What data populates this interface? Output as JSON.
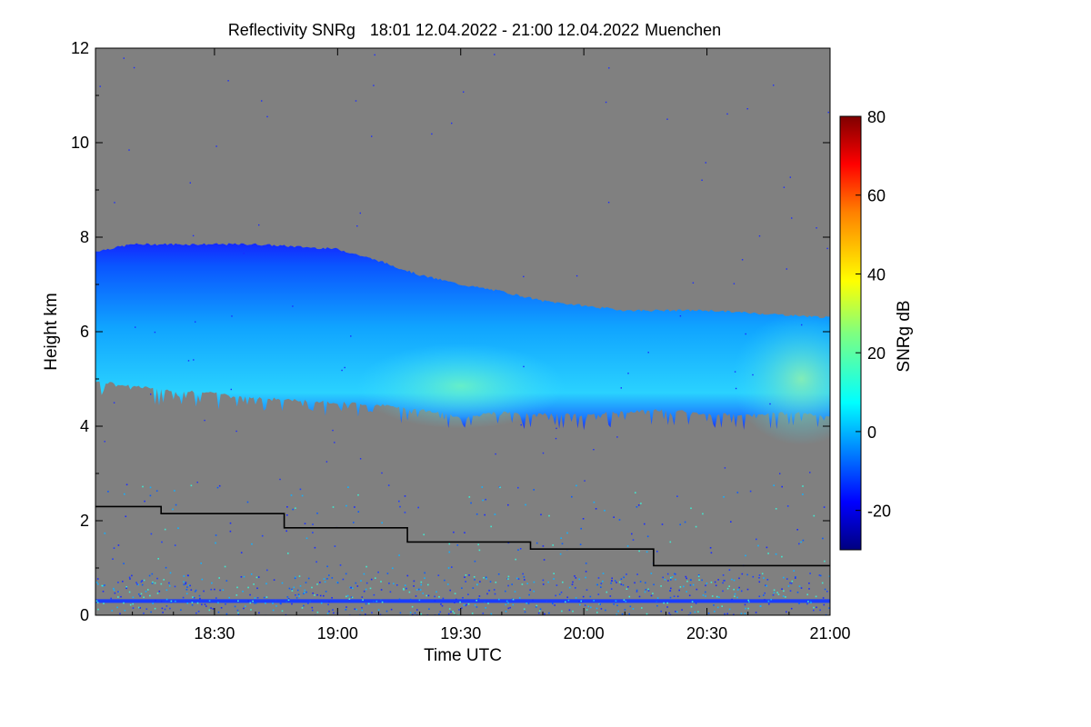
{
  "chart_data": {
    "type": "heatmap",
    "title": {
      "product": "Reflectivity SNRg",
      "period": "18:01 12.04.2022 - 21:00 12.04.2022",
      "site": "Muenchen"
    },
    "xlabel": "Time UTC",
    "ylabel": "Height km",
    "xlim_minutes": [
      1081,
      1260
    ],
    "ylim_km": [
      0,
      12
    ],
    "x_ticks": [
      {
        "label": "18:30",
        "minutes": 1110
      },
      {
        "label": "19:00",
        "minutes": 1140
      },
      {
        "label": "19:30",
        "minutes": 1170
      },
      {
        "label": "20:00",
        "minutes": 1200
      },
      {
        "label": "20:30",
        "minutes": 1230
      },
      {
        "label": "21:00",
        "minutes": 1260
      }
    ],
    "y_ticks": [
      0,
      2,
      4,
      6,
      8,
      10,
      12
    ],
    "colorbar": {
      "label": "SNRg dB",
      "range": [
        -30,
        80
      ],
      "ticks": [
        -20,
        0,
        20,
        40,
        60,
        80
      ],
      "colormap": "jet"
    },
    "background_color": "#808080",
    "cloud_layer": {
      "description": "SNRg echo of cloud layer",
      "times_minutes": [
        1081,
        1090,
        1100,
        1110,
        1120,
        1130,
        1140,
        1150,
        1160,
        1170,
        1180,
        1190,
        1200,
        1210,
        1220,
        1230,
        1240,
        1250,
        1260
      ],
      "top_km": [
        7.7,
        7.85,
        7.85,
        7.85,
        7.85,
        7.8,
        7.75,
        7.5,
        7.2,
        7.0,
        6.85,
        6.65,
        6.55,
        6.45,
        6.45,
        6.45,
        6.4,
        6.35,
        6.3
      ],
      "base_km": [
        4.95,
        4.85,
        4.75,
        4.7,
        4.6,
        4.55,
        4.5,
        4.45,
        4.35,
        4.2,
        4.3,
        4.25,
        4.25,
        4.3,
        4.35,
        4.25,
        4.25,
        4.3,
        4.2
      ],
      "peak_snr_db": 20
    },
    "step_line": {
      "color": "#000000",
      "x_minutes": [
        1081,
        1097,
        1097,
        1127,
        1127,
        1157,
        1157,
        1187,
        1187,
        1217,
        1217,
        1260
      ],
      "y_km": [
        2.3,
        2.3,
        2.15,
        2.15,
        1.85,
        1.85,
        1.55,
        1.55,
        1.4,
        1.4,
        1.05,
        1.05
      ]
    },
    "ground_band_km": 0.3
  }
}
